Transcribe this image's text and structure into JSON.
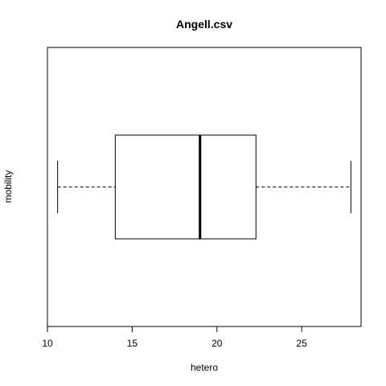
{
  "chart_data": {
    "type": "boxplot",
    "orientation": "horizontal",
    "title": "Angell.csv",
    "xlabel": "hetero",
    "ylabel": "mobility",
    "xlim": [
      10,
      28.5
    ],
    "xticks": [
      10,
      15,
      20,
      25
    ],
    "box": {
      "whisker_low": 10.6,
      "q1": 14.0,
      "median": 19.0,
      "q3": 22.3,
      "whisker_high": 27.9
    },
    "grid": false,
    "legend": "none"
  }
}
